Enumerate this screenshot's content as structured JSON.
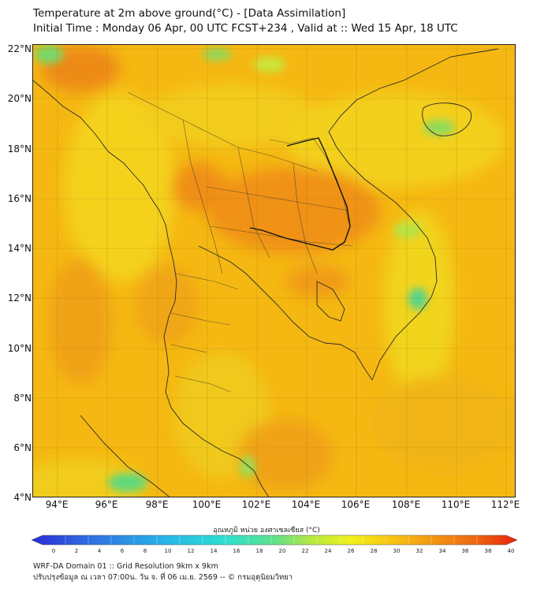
{
  "title": {
    "line1": "Temperature at 2m above ground(°C) - [Data Assimilation]",
    "line2": "Initial Time : Monday 06 Apr, 00 UTC FCST+234 , Valid at :: Wed 15 Apr, 18 UTC"
  },
  "map": {
    "lat_labels": [
      "22°N",
      "20°N",
      "18°N",
      "16°N",
      "14°N",
      "12°N",
      "10°N",
      "8°N",
      "6°N",
      "4°N"
    ],
    "lon_labels": [
      "94°E",
      "96°E",
      "98°E",
      "100°E",
      "102°E",
      "104°E",
      "106°E",
      "108°E",
      "110°E",
      "112°E"
    ],
    "background_color": "#f5b60e"
  },
  "colorbar": {
    "title": "อุณหภูมิ หน่วย องศาเซลเซียส (°C)",
    "ticks": [
      "0",
      "2",
      "4",
      "6",
      "8",
      "10",
      "12",
      "14",
      "16",
      "18",
      "20",
      "22",
      "24",
      "26",
      "28",
      "30",
      "32",
      "34",
      "36",
      "38",
      "40"
    ],
    "colors": [
      "#2b2bd6",
      "#2f6fe0",
      "#27b7e6",
      "#2ee0d0",
      "#5fe08a",
      "#b9ea3c",
      "#f3f01a",
      "#f7c514",
      "#f39a12",
      "#ee6a10",
      "#e8200c"
    ]
  },
  "footer": {
    "line1": "WRF-DA Domain 01 :: Grid Resolution 9km x 9km",
    "line2": "ปรับปรุงข้อมูล ณ เวลา 07:00น. วัน จ. ที่ 06 เม.ย. 2569 -- © กรมอุตุนิยมวิทยา"
  }
}
